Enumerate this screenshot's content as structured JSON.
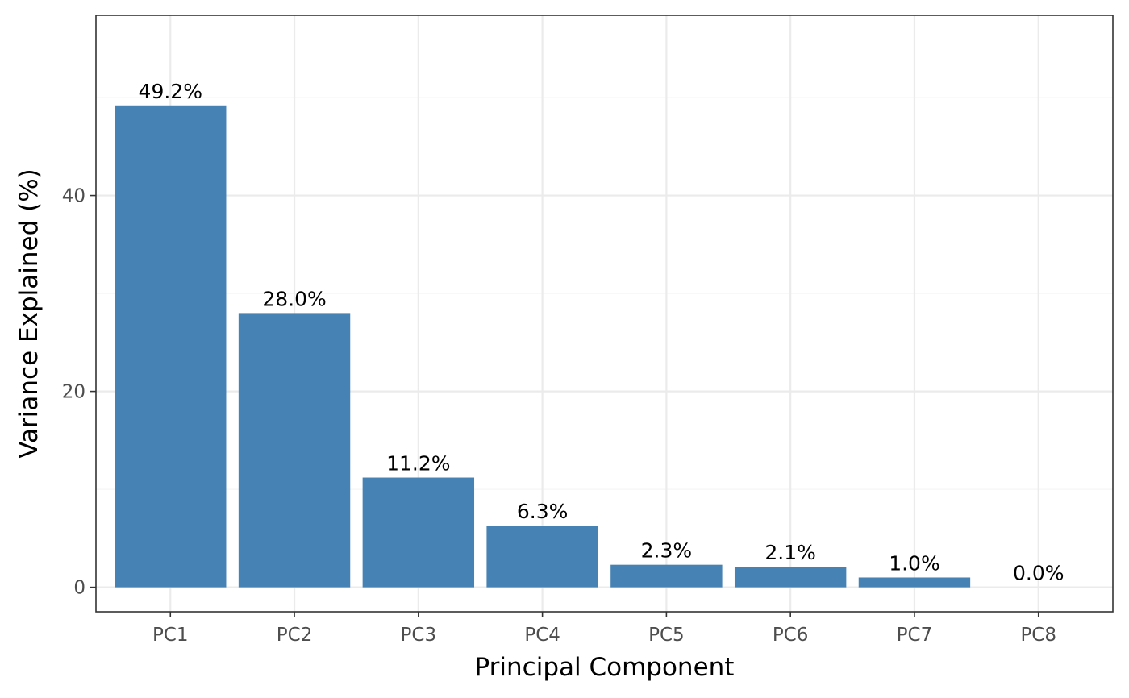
{
  "chart_data": {
    "type": "bar",
    "categories": [
      "PC1",
      "PC2",
      "PC3",
      "PC4",
      "PC5",
      "PC6",
      "PC7",
      "PC8"
    ],
    "values": [
      49.2,
      28.0,
      11.2,
      6.3,
      2.3,
      2.1,
      1.0,
      0.0
    ],
    "data_labels": [
      "49.2%",
      "28.0%",
      "11.2%",
      "6.3%",
      "2.3%",
      "2.1%",
      "1.0%",
      "0.0%"
    ],
    "xlabel": "Principal Component",
    "ylabel": "Variance Explained (%)",
    "ylim": [
      -2.5,
      58.4
    ],
    "yticks": [
      0,
      20,
      40
    ],
    "ytick_labels": [
      "0",
      "20",
      "40"
    ],
    "grid": true,
    "legend": "none",
    "colors": {
      "bar": "#4682b4"
    }
  }
}
